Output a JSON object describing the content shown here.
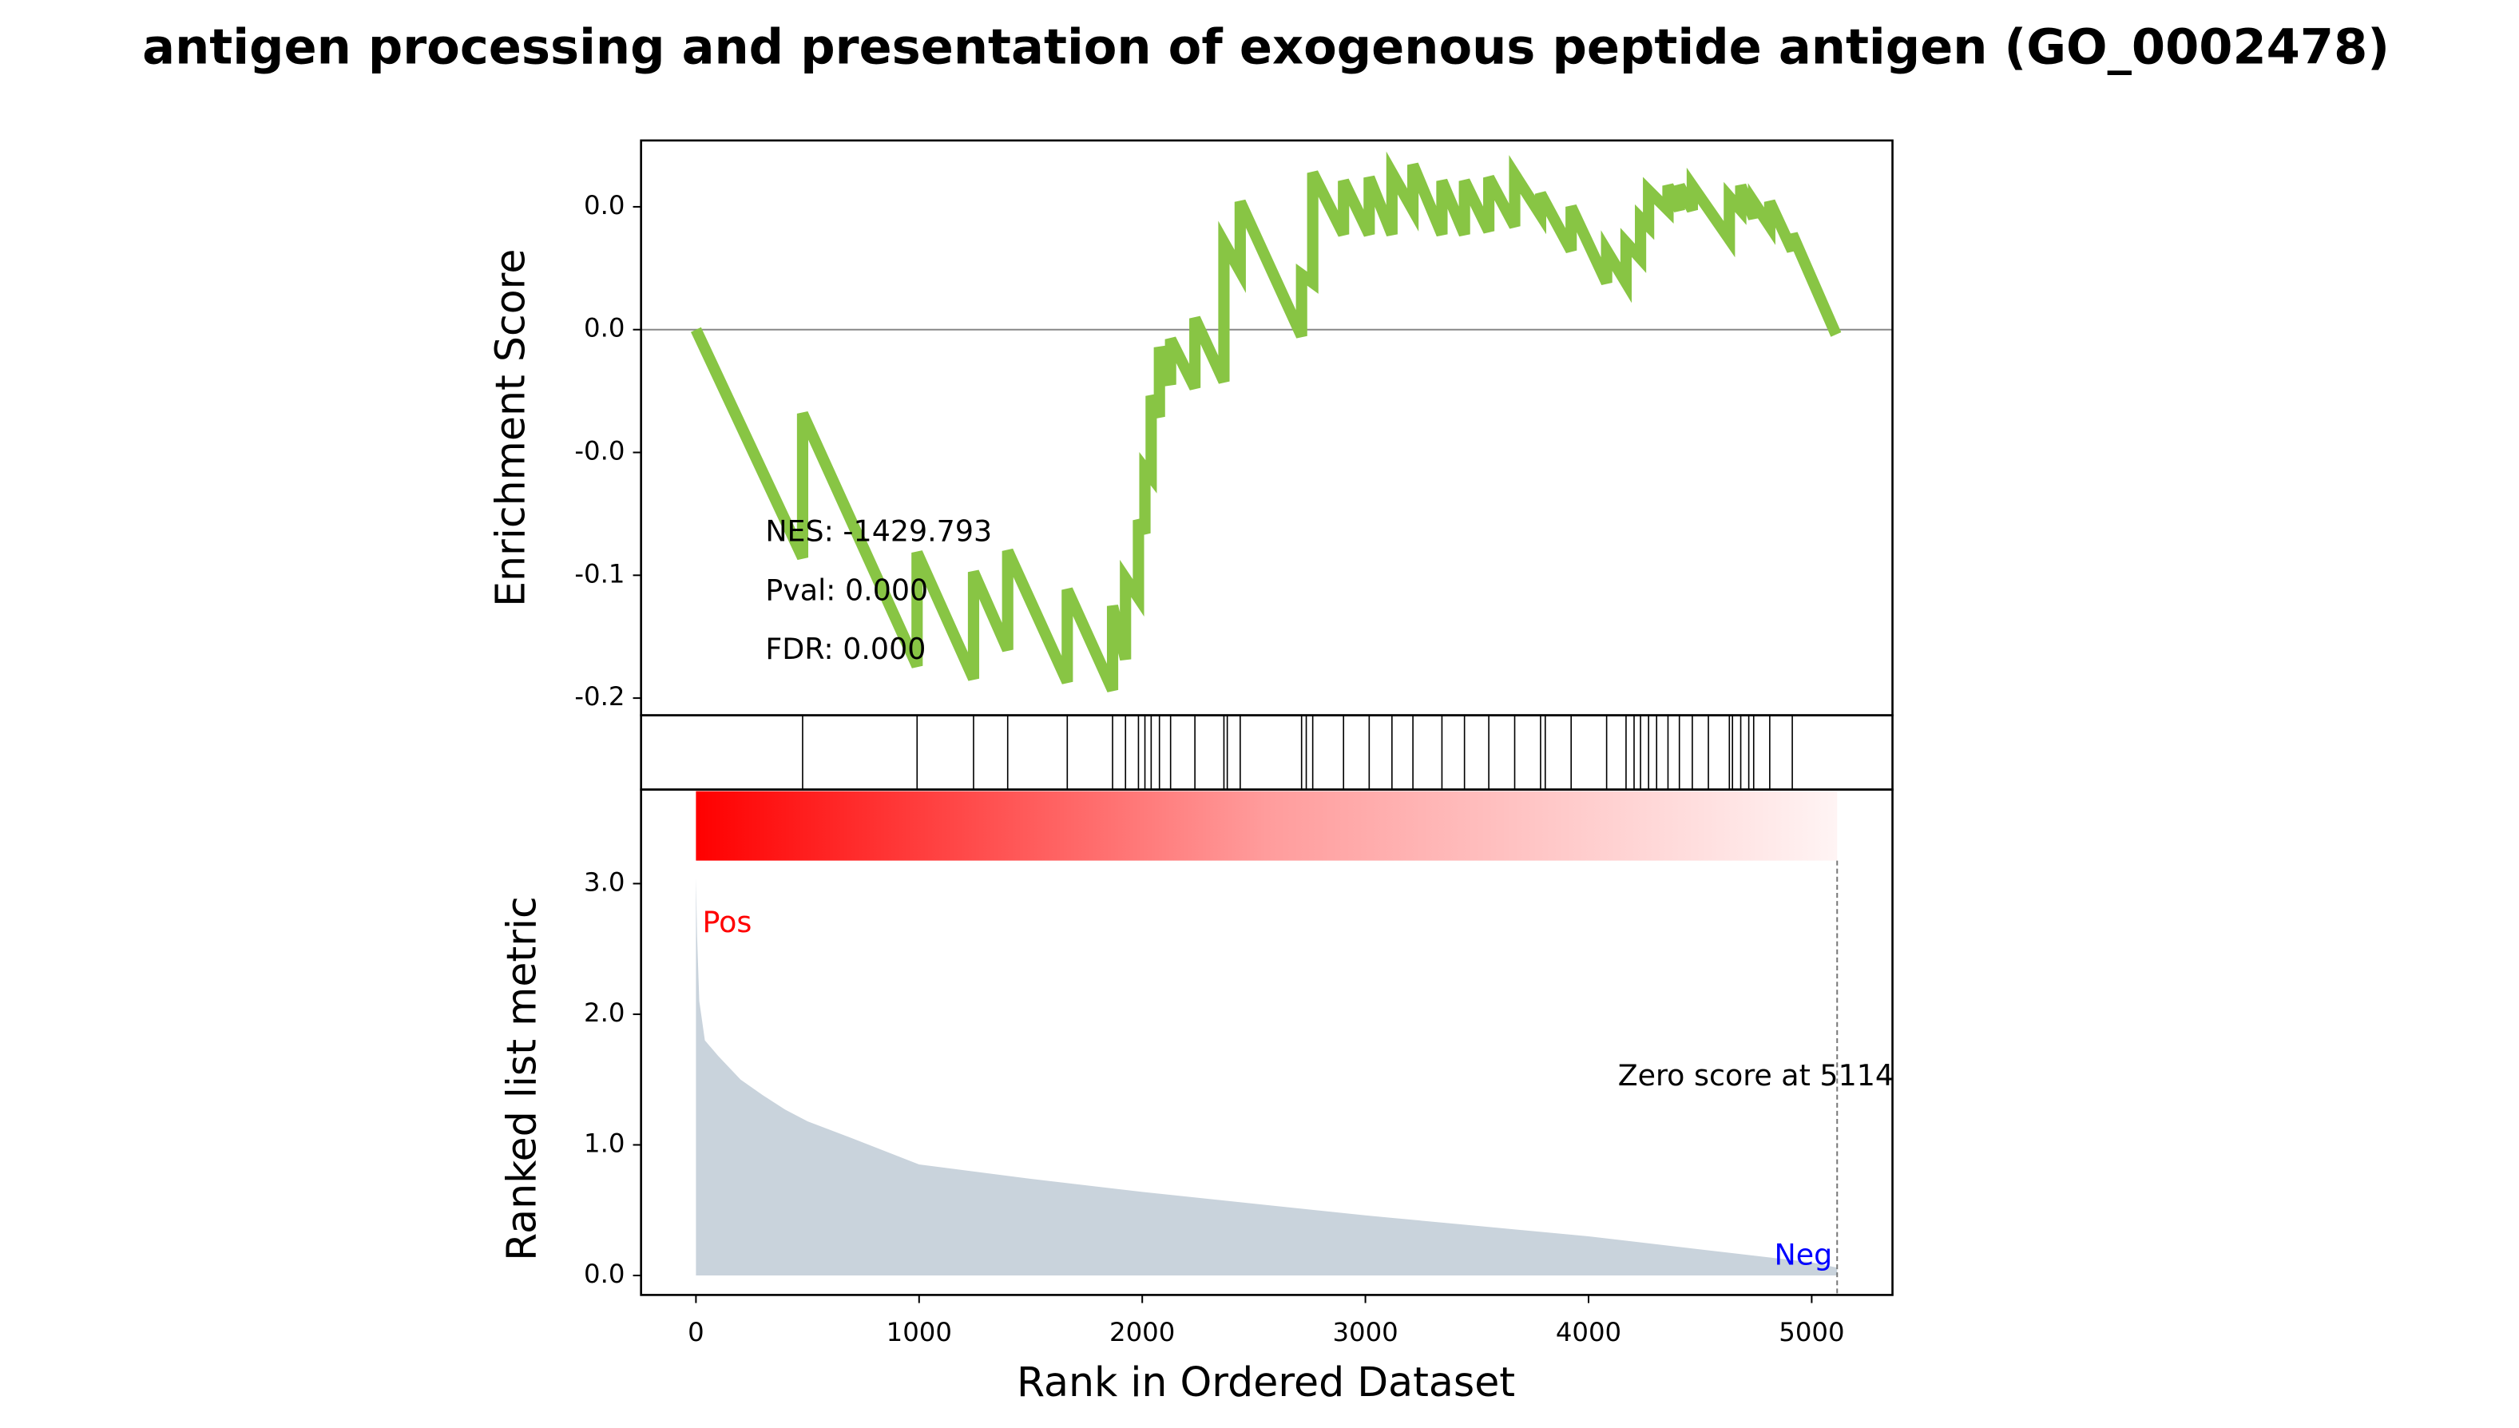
{
  "chart_data": [
    {
      "type": "line",
      "title": "antigen processing and presentation of exogenous peptide antigen (GO_0002478)",
      "ylabel": "Enrichment Score",
      "x": [
        0,
        478,
        478,
        991,
        991,
        1244,
        1244,
        1397,
        1397,
        1664,
        1664,
        1867,
        1867,
        1925,
        1925,
        1983,
        1983,
        2012,
        2012,
        2040,
        2040,
        2077,
        2077,
        2127,
        2127,
        2236,
        2236,
        2366,
        2366,
        2439,
        2439,
        2714,
        2714,
        2764,
        2764,
        2902,
        2902,
        3017,
        3017,
        3119,
        3119,
        3213,
        3213,
        3343,
        3343,
        3444,
        3444,
        3553,
        3553,
        3669,
        3669,
        3785,
        3785,
        3922,
        3922,
        4081,
        4081,
        4168,
        4168,
        4233,
        4233,
        4269,
        4269,
        4356,
        4356,
        4407,
        4407,
        4465,
        4465,
        4631,
        4631,
        4682,
        4682,
        4740,
        4740,
        4812,
        4812,
        4913,
        4913,
        5109
      ],
      "series": [
        {
          "color": "#88c544",
          "values": [
            0,
            -0.0928,
            -0.0342,
            -0.1369,
            -0.0908,
            -0.1421,
            -0.0987,
            -0.1303,
            -0.0901,
            -0.1434,
            -0.1059,
            -0.1467,
            -0.1125,
            -0.1342,
            -0.1013,
            -0.1092,
            -0.0776,
            -0.0829,
            -0.0566,
            -0.0599,
            -0.027,
            -0.0355,
            -0.0072,
            -0.0224,
            -0.0039,
            -0.0237,
            0.0046,
            -0.0211,
            0.0355,
            0.0237,
            0.052,
            -0.0026,
            0.0224,
            0.0191,
            0.0638,
            0.0388,
            0.0605,
            0.0388,
            0.0619,
            0.0388,
            0.0638,
            0.0487,
            0.0671,
            0.0388,
            0.0605,
            0.0388,
            0.0605,
            0.0401,
            0.0619,
            0.0421,
            0.0632,
            0.0467,
            0.0553,
            0.0322,
            0.05,
            0.0191,
            0.0322,
            0.0191,
            0.0355,
            0.029,
            0.0454,
            0.0421,
            0.0566,
            0.0487,
            0.0586,
            0.0487,
            0.0586,
            0.0487,
            0.0586,
            0.0368,
            0.054,
            0.0487,
            0.0586,
            0.0454,
            0.052,
            0.0421,
            0.052,
            0.0322,
            0.0388,
            -0.002
          ]
        }
      ],
      "xlim": [
        -246,
        5362
      ],
      "ylim": [
        -0.157,
        0.077
      ],
      "yticks": [
        {
          "value": 0.05,
          "label": "0.0"
        },
        {
          "value": 0,
          "label": "0.0"
        },
        {
          "value": -0.05,
          "label": "-0.0"
        },
        {
          "value": -0.1,
          "label": "-0.1"
        },
        {
          "value": -0.15,
          "label": "-0.2"
        }
      ],
      "annotations": [
        "NES: -1429.793",
        "Pval: 0.000",
        "FDR: 0.000"
      ]
    },
    {
      "type": "hits",
      "x": [
        478,
        991,
        1244,
        1397,
        1664,
        1867,
        1925,
        1983,
        2012,
        2040,
        2077,
        2127,
        2236,
        2366,
        2381,
        2439,
        2714,
        2735,
        2764,
        2902,
        3017,
        3119,
        3213,
        3343,
        3444,
        3553,
        3669,
        3785,
        3806,
        3922,
        4081,
        4168,
        4204,
        4233,
        4269,
        4305,
        4356,
        4407,
        4465,
        4537,
        4631,
        4645,
        4682,
        4718,
        4740,
        4812,
        4913
      ],
      "xlim": [
        -246,
        5362
      ]
    },
    {
      "type": "area",
      "ylabel": "Ranked list metric",
      "xlabel": "Rank in Ordered Dataset",
      "x": [
        0,
        5,
        15,
        40,
        100,
        200,
        300,
        400,
        500,
        700,
        1000,
        1500,
        2000,
        2500,
        3000,
        3500,
        4000,
        4500,
        5000,
        5114
      ],
      "values": [
        3.05,
        2.6,
        2.1,
        1.8,
        1.68,
        1.5,
        1.38,
        1.27,
        1.18,
        1.05,
        0.85,
        0.74,
        0.64,
        0.55,
        0.46,
        0.38,
        0.3,
        0.2,
        0.1,
        0.06
      ],
      "color": "#c9d3dc",
      "xlim": [
        -246,
        5362
      ],
      "xticks": [
        0,
        1000,
        2000,
        3000,
        4000,
        5000
      ],
      "ylim": [
        -0.149,
        3.72
      ],
      "yticks": [
        {
          "value": 0,
          "label": "0.0"
        },
        {
          "value": 1,
          "label": "1.0"
        },
        {
          "value": 2,
          "label": "2.0"
        },
        {
          "value": 3,
          "label": "3.0"
        }
      ],
      "zero_rank": 5114,
      "annotations": [
        {
          "text": "Pos",
          "color": "#ff0000"
        },
        {
          "text": "Neg",
          "color": "#0000ff"
        },
        {
          "text": "Zero score at 5114",
          "color": "#000000"
        }
      ]
    }
  ]
}
